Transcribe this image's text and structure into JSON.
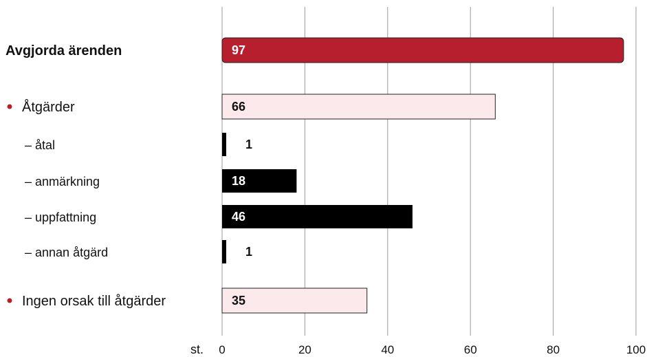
{
  "chart_data": {
    "type": "bar",
    "orientation": "horizontal",
    "unit": "st.",
    "xlim": [
      0,
      100
    ],
    "xticks": [
      "0",
      "20",
      "40",
      "60",
      "80",
      "100"
    ],
    "grid": true,
    "categories": [
      {
        "label": "Avgjorda ärenden",
        "value": 97,
        "level": "total",
        "bullet": false,
        "bold": true,
        "color": "#b81f2e"
      },
      {
        "label": "Åtgärder",
        "value": 66,
        "level": "group",
        "bullet": true,
        "bold": false,
        "color": "#fbe9eb"
      },
      {
        "label": "– åtal",
        "value": 1,
        "level": "sub",
        "bullet": false,
        "bold": false,
        "color": "#000000"
      },
      {
        "label": "– anmärkning",
        "value": 18,
        "level": "sub",
        "bullet": false,
        "bold": false,
        "color": "#000000"
      },
      {
        "label": "– uppfattning",
        "value": 46,
        "level": "sub",
        "bullet": false,
        "bold": false,
        "color": "#000000"
      },
      {
        "label": "– annan åtgärd",
        "value": 1,
        "level": "sub",
        "bullet": false,
        "bold": false,
        "color": "#000000"
      },
      {
        "label": "Ingen orsak till åtgärder",
        "value": 35,
        "level": "group",
        "bullet": true,
        "bold": false,
        "color": "#fbe9eb"
      }
    ],
    "bullet_color": "#b81f2e",
    "grid_color": "#9a9a9a"
  }
}
